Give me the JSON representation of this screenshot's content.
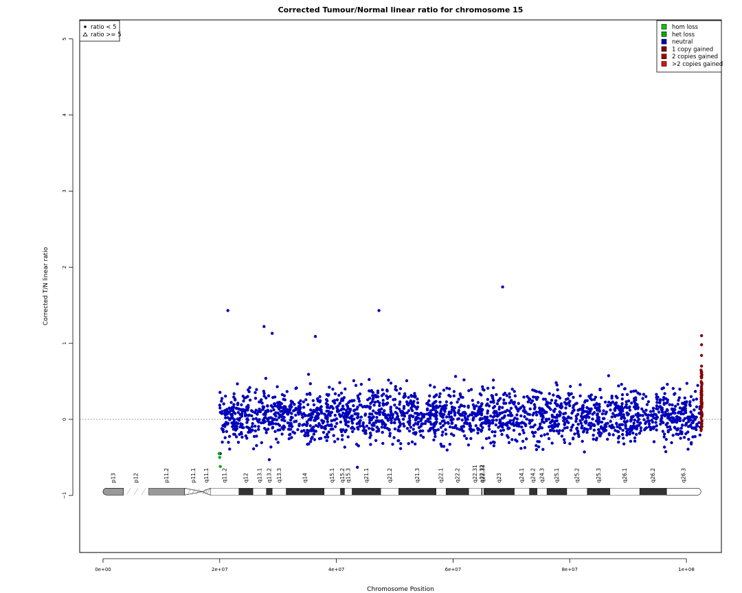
{
  "chart_data": {
    "type": "scatter",
    "title": "Corrected Tumour/Normal linear ratio for chromosome  15",
    "xlabel": "Chromosome Position",
    "ylabel": "Corrected T/N linear ratio",
    "xlim": [
      -4000000,
      106000000
    ],
    "ylim": [
      -1.75,
      5.25
    ],
    "x_ticks": [
      0,
      20000000,
      40000000,
      60000000,
      80000000,
      100000000
    ],
    "x_tick_labels": [
      "0e+00",
      "2e+07",
      "4e+07",
      "6e+07",
      "8e+07",
      "1e+08"
    ],
    "y_ticks": [
      -1,
      0,
      1,
      2,
      3,
      4,
      5
    ],
    "y_tick_labels": [
      "−1",
      "0",
      "1",
      "2",
      "3",
      "4",
      "5"
    ],
    "reference_line": {
      "y": 0,
      "style": "dotted"
    },
    "shape_legend": {
      "placement": "top-left",
      "entries": [
        {
          "symbol": "filled-circle",
          "label": "ratio < 5"
        },
        {
          "symbol": "open-triangle",
          "label": "ratio >= 5"
        }
      ]
    },
    "legend": {
      "placement": "top-right",
      "entries": [
        {
          "label": "hom loss",
          "color": "#00cc00"
        },
        {
          "label": "het loss",
          "color": "#00aa00"
        },
        {
          "label": "neutral",
          "color": "#0000bb"
        },
        {
          "label": "1 copy gained",
          "color": "#880000"
        },
        {
          "label": "2 copies gained",
          "color": "#aa0000"
        },
        {
          "label": ">2 copies gained",
          "color": "#dd1111"
        }
      ]
    },
    "series": [
      {
        "name": "neutral",
        "color": "#0000bb",
        "x_range": [
          20000000,
          102500000
        ],
        "typical_y_range": [
          -0.4,
          0.6
        ],
        "outliers": [
          {
            "x": 21400000,
            "y": 1.43
          },
          {
            "x": 27600000,
            "y": 1.22
          },
          {
            "x": 29000000,
            "y": 1.13
          },
          {
            "x": 36400000,
            "y": 1.09
          },
          {
            "x": 47300000,
            "y": 1.43
          },
          {
            "x": 68500000,
            "y": 1.74
          },
          {
            "x": 20100000,
            "y": -0.45
          },
          {
            "x": 28500000,
            "y": -0.53
          },
          {
            "x": 43600000,
            "y": -0.63
          }
        ]
      },
      {
        "name": "het loss",
        "color": "#00aa00",
        "points": [
          {
            "x": 19900000,
            "y": -0.45
          },
          {
            "x": 20000000,
            "y": -0.5
          },
          {
            "x": 20100000,
            "y": -0.62
          }
        ]
      },
      {
        "name": "1 copy gained",
        "color": "#880000",
        "x_range": [
          102500000,
          102700000
        ],
        "points": [
          {
            "x": 102600000,
            "y": 1.1
          },
          {
            "x": 102600000,
            "y": 0.98
          },
          {
            "x": 102600000,
            "y": 0.84
          },
          {
            "x": 102600000,
            "y": 0.7
          }
        ]
      }
    ],
    "ideogram": {
      "y": -0.95,
      "bands": [
        {
          "name": "p13",
          "start": 0,
          "end": 3500000,
          "stain": "gvar"
        },
        {
          "name": "p12",
          "start": 3500000,
          "end": 7800000,
          "stain": "stalk"
        },
        {
          "name": "p11.2",
          "start": 7800000,
          "end": 14000000,
          "stain": "gvar"
        },
        {
          "name": "p11.1",
          "start": 14000000,
          "end": 17000000,
          "stain": "acen"
        },
        {
          "name": "q11.1",
          "start": 17000000,
          "end": 18400000,
          "stain": "acen"
        },
        {
          "name": "q11.2",
          "start": 18400000,
          "end": 23300000,
          "stain": "gneg"
        },
        {
          "name": "q12",
          "start": 23300000,
          "end": 25700000,
          "stain": "gpos50"
        },
        {
          "name": "q13.1",
          "start": 25700000,
          "end": 28000000,
          "stain": "gneg"
        },
        {
          "name": "q13.2",
          "start": 28000000,
          "end": 29000000,
          "stain": "gpos50"
        },
        {
          "name": "q13.3",
          "start": 29000000,
          "end": 31400000,
          "stain": "gneg"
        },
        {
          "name": "q14",
          "start": 31400000,
          "end": 37900000,
          "stain": "gpos50"
        },
        {
          "name": "q15.1",
          "start": 37900000,
          "end": 40700000,
          "stain": "gneg"
        },
        {
          "name": "q15.2",
          "start": 40700000,
          "end": 41400000,
          "stain": "gpos25"
        },
        {
          "name": "q15.3",
          "start": 41400000,
          "end": 42700000,
          "stain": "gneg"
        },
        {
          "name": "q21.1",
          "start": 42700000,
          "end": 47600000,
          "stain": "gpos75"
        },
        {
          "name": "q21.2",
          "start": 47600000,
          "end": 50700000,
          "stain": "gneg"
        },
        {
          "name": "q21.3",
          "start": 50700000,
          "end": 57100000,
          "stain": "gpos75"
        },
        {
          "name": "q22.1",
          "start": 57100000,
          "end": 58800000,
          "stain": "gneg"
        },
        {
          "name": "q22.2",
          "start": 58800000,
          "end": 62700000,
          "stain": "gpos25"
        },
        {
          "name": "q22.31",
          "start": 62700000,
          "end": 64900000,
          "stain": "gneg"
        },
        {
          "name": "q22.32",
          "start": 64900000,
          "end": 65000000,
          "stain": "gpos25"
        },
        {
          "name": "q22.33",
          "start": 65000000,
          "end": 65300000,
          "stain": "gneg"
        },
        {
          "name": "q23",
          "start": 65300000,
          "end": 70500000,
          "stain": "gpos25"
        },
        {
          "name": "q24.1",
          "start": 70500000,
          "end": 73100000,
          "stain": "gneg"
        },
        {
          "name": "q24.2",
          "start": 73100000,
          "end": 74400000,
          "stain": "gpos25"
        },
        {
          "name": "q24.3",
          "start": 74400000,
          "end": 76100000,
          "stain": "gneg"
        },
        {
          "name": "q25.1",
          "start": 76100000,
          "end": 79500000,
          "stain": "gpos50"
        },
        {
          "name": "q25.2",
          "start": 79500000,
          "end": 83000000,
          "stain": "gneg"
        },
        {
          "name": "q25.3",
          "start": 83000000,
          "end": 86900000,
          "stain": "gpos50"
        },
        {
          "name": "q26.1",
          "start": 86900000,
          "end": 92000000,
          "stain": "gneg"
        },
        {
          "name": "q26.2",
          "start": 92000000,
          "end": 96600000,
          "stain": "gpos50"
        },
        {
          "name": "q26.3",
          "start": 96600000,
          "end": 102500000,
          "stain": "gneg"
        }
      ]
    }
  }
}
